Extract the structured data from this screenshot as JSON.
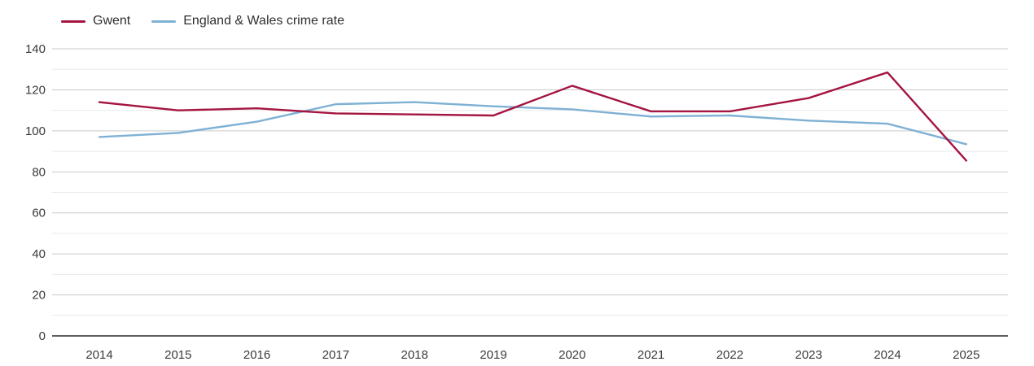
{
  "chart": {
    "legend_position": "top-left"
  },
  "chart_data": {
    "type": "line",
    "x": [
      2014,
      2015,
      2016,
      2017,
      2018,
      2019,
      2020,
      2021,
      2022,
      2023,
      2024,
      2025
    ],
    "series": [
      {
        "name": "Gwent",
        "color": "#a41540",
        "values": [
          114,
          110,
          111,
          108.5,
          108,
          107.5,
          122,
          109.5,
          109.5,
          116,
          128.5,
          85.5
        ]
      },
      {
        "name": "England & Wales crime rate",
        "color": "#7fb1d4",
        "values": [
          97,
          99,
          104.5,
          113,
          114,
          112,
          110.5,
          107,
          107.5,
          105,
          103.5,
          93.5
        ]
      }
    ],
    "title": "",
    "xlabel": "",
    "ylabel": "",
    "ylim": [
      0,
      140
    ],
    "yticks_major": [
      0,
      20,
      40,
      60,
      80,
      100,
      120,
      140
    ],
    "yticks_minor": [
      10,
      30,
      50,
      70,
      90,
      110,
      130
    ],
    "xtick_labels": [
      "2014",
      "2015",
      "2016",
      "2017",
      "2018",
      "2019",
      "2020",
      "2021",
      "2022",
      "2023",
      "2024",
      "2025"
    ],
    "grid": true,
    "legend_position": "top-left"
  },
  "colors": {
    "grid_major": "#c9c9c9",
    "grid_minor": "#e9e9e9",
    "axis_line": "#2b2b2b",
    "tick_text": "#3a3a3a",
    "background": "#ffffff"
  }
}
